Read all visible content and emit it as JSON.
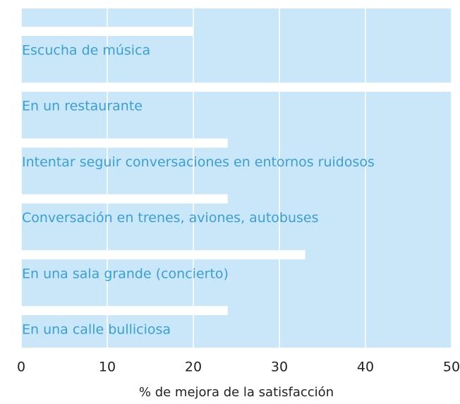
{
  "chart_data": {
    "type": "bar",
    "orientation": "horizontal",
    "categories": [
      "Escucha de música",
      "En un restaurante",
      "Intentar seguir conversaciones en entornos ruidosos",
      "Conversación en trenes, aviones, autobuses",
      "En una sala grande (concierto)",
      "En una calle bulliciosa"
    ],
    "values": [
      20,
      50,
      24,
      24,
      33,
      24
    ],
    "color": "#ffffff",
    "plot_background": "#c9e7f8",
    "label_color": "#3a9fd6",
    "xlim": [
      0,
      50
    ],
    "xticks": [
      0,
      10,
      20,
      30,
      40,
      50
    ],
    "grid": true,
    "xlabel": "% de mejora de la satisfacción"
  }
}
